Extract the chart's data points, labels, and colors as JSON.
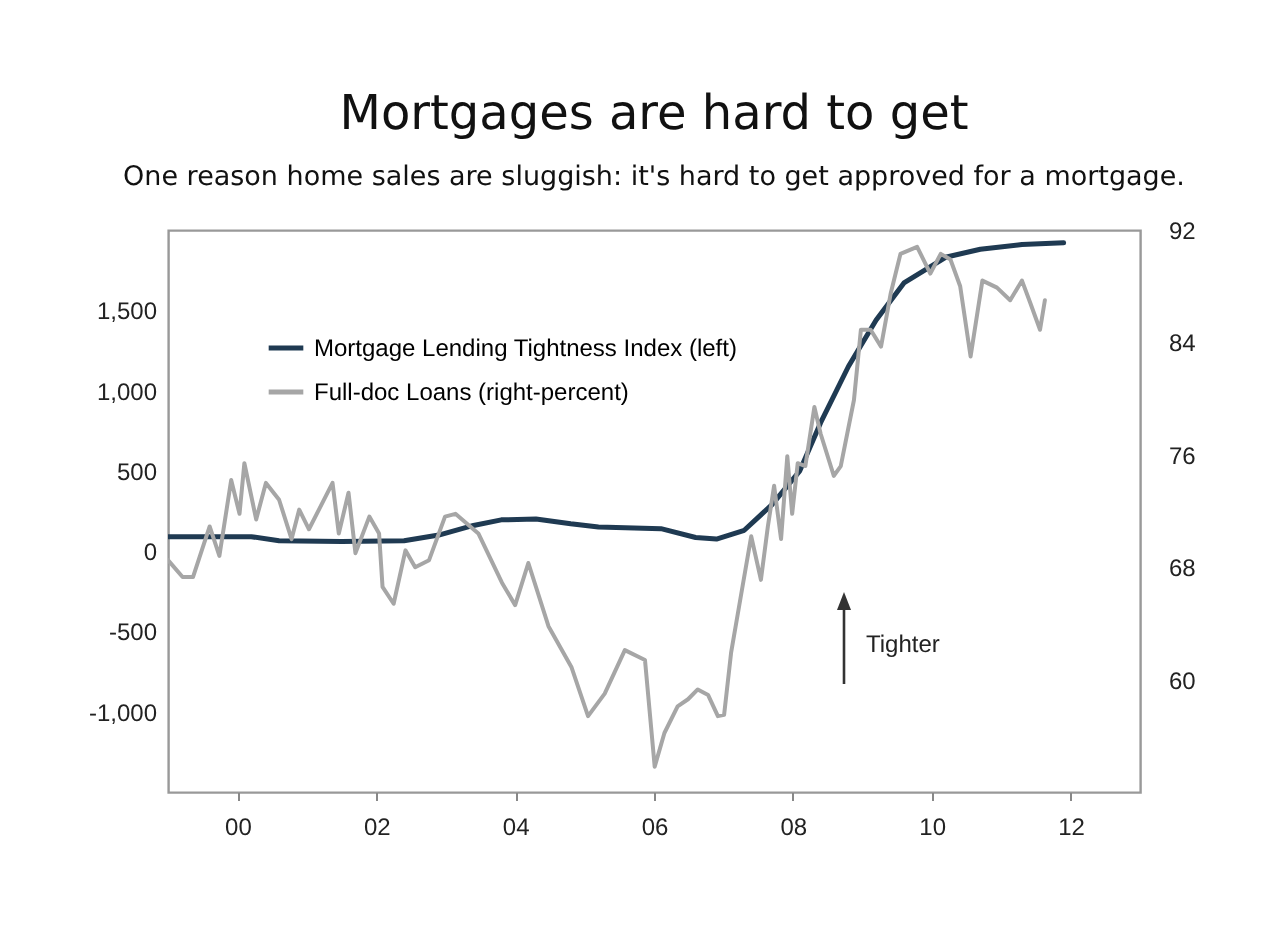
{
  "chart_data": {
    "type": "line",
    "title": "Mortgages are hard to get",
    "subtitle": "One reason home sales are sluggish: it's hard to get approved for a mortgage.",
    "annotations": [
      "Tighter"
    ],
    "xlim": [
      1999,
      2013
    ],
    "xticks": [
      {
        "value": 2000,
        "label": "00"
      },
      {
        "value": 2002,
        "label": "02"
      },
      {
        "value": 2004,
        "label": "04"
      },
      {
        "value": 2006,
        "label": "06"
      },
      {
        "value": 2008,
        "label": "08"
      },
      {
        "value": 2010,
        "label": "10"
      },
      {
        "value": 2012,
        "label": "12"
      }
    ],
    "ylim": [
      -1500,
      2000
    ],
    "yticks": [
      {
        "value": -1000,
        "label": "-1,000"
      },
      {
        "value": -500,
        "label": "-500"
      },
      0,
      500,
      {
        "value": 1000,
        "label": "1,000"
      },
      {
        "value": 1500,
        "label": "1,500"
      }
    ],
    "y2lim": [
      52,
      92
    ],
    "y2ticks": [
      60,
      68,
      76,
      84,
      92
    ],
    "legend": "top left",
    "grid": false,
    "series": [
      {
        "name": "Mortgage Lending Tightness Index (left)",
        "color": "#1f3a52",
        "x": [
          1999.0,
          2000.2,
          2000.6,
          2001.5,
          2002.4,
          2002.9,
          2003.4,
          2003.8,
          2004.3,
          2004.8,
          2005.2,
          2006.1,
          2006.6,
          2006.9,
          2007.3,
          2007.7,
          2008.1,
          2008.4,
          2008.8,
          2009.2,
          2009.6,
          2010.2,
          2010.7,
          2011.3,
          2011.9
        ],
        "values": [
          90,
          90,
          65,
          60,
          65,
          100,
          160,
          195,
          200,
          170,
          150,
          140,
          85,
          75,
          130,
          290,
          500,
          800,
          1150,
          1440,
          1670,
          1830,
          1880,
          1910,
          1920
        ]
      },
      {
        "name": "Full-doc Loans (right-percent)",
        "color": "#a6a6a6",
        "axis": "y2",
        "x": [
          1999.0,
          1999.21,
          1999.36,
          1999.6,
          1999.74,
          1999.91,
          2000.03,
          2000.1,
          2000.27,
          2000.41,
          2000.6,
          2000.78,
          2000.89,
          2001.03,
          2001.37,
          2001.46,
          2001.6,
          2001.7,
          2001.9,
          2002.04,
          2002.09,
          2002.25,
          2002.42,
          2002.56,
          2002.76,
          2002.99,
          2003.14,
          2003.47,
          2003.81,
          2004.0,
          2004.19,
          2004.48,
          2004.81,
          2005.05,
          2005.29,
          2005.58,
          2005.87,
          2006.01,
          2006.15,
          2006.34,
          2006.49,
          2006.63,
          2006.78,
          2006.92,
          2007.01,
          2007.11,
          2007.26,
          2007.4,
          2007.54,
          2007.64,
          2007.73,
          2007.83,
          2007.92,
          2007.99,
          2008.07,
          2008.18,
          2008.31,
          2008.4,
          2008.59,
          2008.69,
          2008.88,
          2008.98,
          2009.12,
          2009.27,
          2009.41,
          2009.55,
          2009.79,
          2009.98,
          2010.13,
          2010.27,
          2010.41,
          2010.56,
          2010.73,
          2010.94,
          2011.13,
          2011.3,
          2011.42,
          2011.56,
          2011.63
        ],
        "values": [
          68.5,
          67.3,
          67.3,
          70.9,
          68.8,
          74.2,
          71.8,
          75.4,
          71.4,
          74.0,
          72.8,
          70.0,
          72.1,
          70.7,
          74.0,
          70.4,
          73.3,
          69.0,
          71.6,
          70.4,
          66.6,
          65.4,
          69.2,
          68.0,
          68.5,
          71.6,
          71.8,
          70.4,
          66.9,
          65.3,
          68.3,
          63.8,
          60.9,
          57.4,
          59.0,
          62.1,
          61.4,
          53.8,
          56.2,
          58.1,
          58.6,
          59.3,
          58.9,
          57.4,
          57.5,
          61.9,
          66.2,
          70.2,
          67.1,
          70.9,
          73.8,
          70.0,
          75.9,
          71.8,
          75.4,
          75.2,
          79.4,
          77.5,
          74.5,
          75.2,
          79.9,
          84.9,
          84.9,
          83.7,
          87.5,
          90.3,
          90.8,
          88.9,
          90.3,
          89.9,
          88.0,
          83.0,
          88.4,
          87.9,
          87.0,
          88.4,
          86.8,
          84.9,
          87.0
        ]
      }
    ]
  }
}
